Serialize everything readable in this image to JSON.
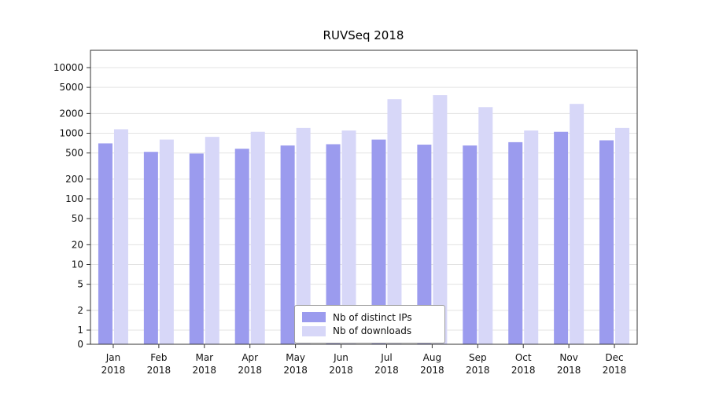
{
  "chart_data": {
    "type": "bar",
    "title": "RUVSeq 2018",
    "categories_months": [
      "Jan",
      "Feb",
      "Mar",
      "Apr",
      "May",
      "Jun",
      "Jul",
      "Aug",
      "Sep",
      "Oct",
      "Nov",
      "Dec"
    ],
    "year": "2018",
    "series": [
      {
        "name": "Nb of distinct IPs",
        "color": "#9b9bee",
        "values": [
          700,
          520,
          490,
          580,
          650,
          680,
          800,
          670,
          650,
          730,
          1050,
          780
        ]
      },
      {
        "name": "Nb of downloads",
        "color": "#d7d7f8",
        "values": [
          1150,
          800,
          880,
          1050,
          1200,
          1100,
          3300,
          3800,
          2500,
          1100,
          2800,
          1200
        ]
      }
    ],
    "yticks": [
      0,
      1,
      2,
      5,
      10,
      20,
      50,
      100,
      200,
      500,
      1000,
      2000,
      5000,
      10000
    ],
    "yscale": "log",
    "ylim": [
      0,
      10000
    ],
    "grid": true,
    "legend_position": "lower center"
  }
}
